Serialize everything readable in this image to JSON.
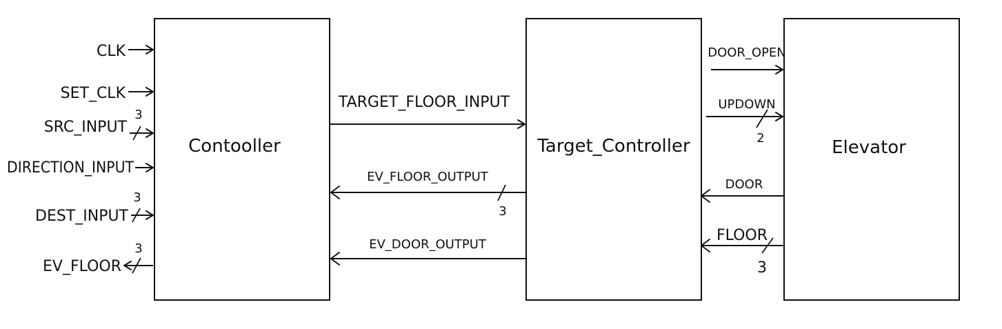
{
  "blocks": {
    "controller": "Contooller",
    "target_controller": "Target_Controller",
    "elevator": "Elevator"
  },
  "controller_ports": {
    "clk": "CLK",
    "set_clk": "SET_CLK",
    "src_input": "SRC_INPUT",
    "src_input_width": "3",
    "direction_input": "DIRECTION_INPUT",
    "dest_input": "DEST_INPUT",
    "dest_input_width": "3",
    "ev_floor": "EV_FLOOR",
    "ev_floor_width": "3"
  },
  "controller_target_signals": {
    "target_floor_input": "TARGET_FLOOR_INPUT",
    "ev_floor_output": "EV_FLOOR_OUTPUT",
    "ev_floor_output_width": "3",
    "ev_door_output": "EV_DOOR_OUTPUT"
  },
  "target_elevator_signals": {
    "door_open": "DOOR_OPEN",
    "updown": "UPDOWN",
    "updown_width": "2",
    "door": "DOOR",
    "floor": "FLOOR",
    "floor_width": "3"
  }
}
